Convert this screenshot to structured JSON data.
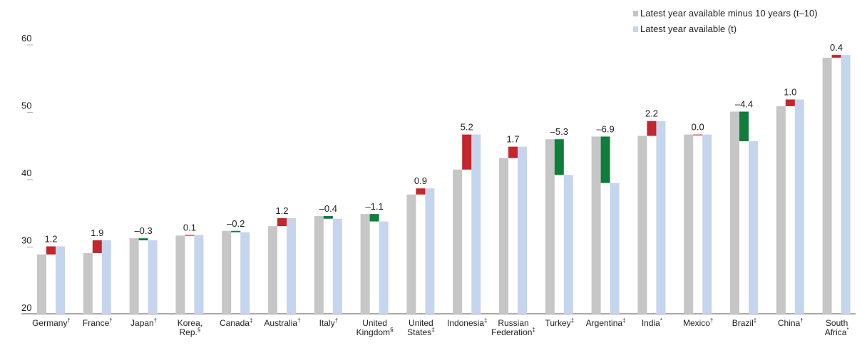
{
  "chart_data": {
    "type": "bar",
    "categories": [
      [
        "Germany†"
      ],
      [
        "France†"
      ],
      [
        "Japan†"
      ],
      [
        "Korea,",
        "Rep.§"
      ],
      [
        "Canada‡"
      ],
      [
        "Australia†"
      ],
      [
        "Italy†"
      ],
      [
        "United",
        "Kingdom§"
      ],
      [
        "United",
        "States‡"
      ],
      [
        "Indonesia‡"
      ],
      [
        "Russian",
        "Federation‡"
      ],
      [
        "Turkey‡"
      ],
      [
        "Argentina‡"
      ],
      [
        "India*"
      ],
      [
        "Mexico†"
      ],
      [
        "Brazil‡"
      ],
      [
        "China†"
      ],
      [
        "South",
        "Africa*"
      ]
    ],
    "series": [
      {
        "name": "Latest year available minus 10 years (t–10)",
        "color": "#c6c6c6",
        "values": [
          28.8,
          29.0,
          31.2,
          31.6,
          32.3,
          33.0,
          34.5,
          34.8,
          37.7,
          41.4,
          43.1,
          45.9,
          46.3,
          46.4,
          46.6,
          50.0,
          50.8,
          58.0
        ]
      },
      {
        "name": "Latest year available (t)",
        "color": "#c6d5ee",
        "values": [
          30.0,
          30.9,
          30.9,
          31.7,
          32.1,
          34.2,
          34.1,
          33.7,
          38.6,
          46.6,
          44.8,
          40.6,
          39.4,
          48.6,
          46.6,
          45.6,
          51.8,
          58.4
        ]
      }
    ],
    "changes": [
      1.2,
      1.9,
      -0.3,
      0.1,
      -0.2,
      1.2,
      -0.4,
      -1.1,
      0.9,
      5.2,
      1.7,
      -5.3,
      -6.9,
      2.2,
      0.0,
      -4.4,
      1.0,
      0.4
    ],
    "change_labels": [
      "1.2",
      "1.9",
      "–0.3",
      "0.1",
      "–0.2",
      "1.2",
      "–0.4",
      "–1.1",
      "0.9",
      "5.2",
      "1.7",
      "–5.3",
      "–6.9",
      "2.2",
      "0.0",
      "–4.4",
      "1.0",
      "0.4"
    ],
    "increase_color": "#c1272d",
    "decrease_color": "#0f7d3b",
    "ylim": [
      20,
      60
    ],
    "yticks": [
      20,
      30,
      40,
      50,
      60
    ]
  }
}
